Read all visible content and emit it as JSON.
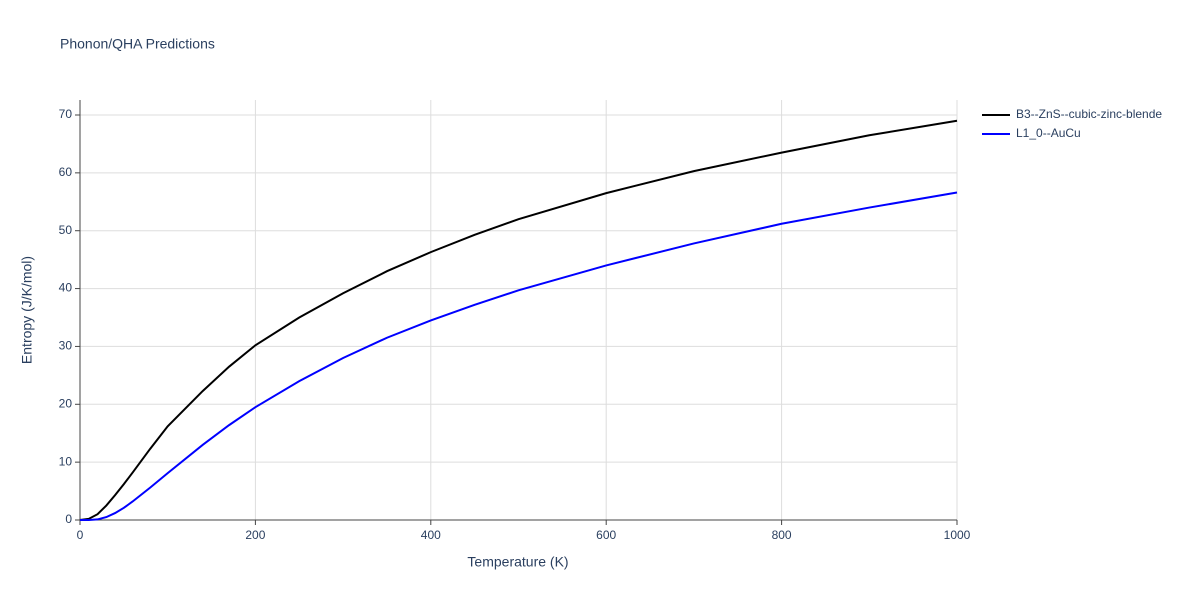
{
  "chart_data": {
    "type": "line",
    "title": "Phonon/QHA Predictions",
    "x_label": "Temperature (K)",
    "y_label": "Entropy (J/K/mol)",
    "x": [
      0,
      10,
      20,
      30,
      40,
      50,
      60,
      80,
      100,
      140,
      170,
      200,
      250,
      300,
      350,
      400,
      450,
      500,
      600,
      700,
      800,
      900,
      1000
    ],
    "series": [
      {
        "name": "B3--ZnS--cubic-zinc-blende",
        "color": "#000000",
        "values": [
          0,
          0.2,
          1,
          2.5,
          4.3,
          6.2,
          8.2,
          12.3,
          16.2,
          22.3,
          26.5,
          30.2,
          35,
          39.2,
          43,
          46.3,
          49.3,
          52,
          56.5,
          60.3,
          63.5,
          66.5,
          69
        ]
      },
      {
        "name": "L1_0--AuCu",
        "color": "#0000ff",
        "values": [
          0,
          0,
          0.1,
          0.5,
          1.2,
          2.1,
          3.2,
          5.6,
          8.1,
          13,
          16.4,
          19.5,
          24,
          28,
          31.5,
          34.5,
          37.2,
          39.7,
          44,
          47.8,
          51.2,
          54,
          56.6
        ]
      }
    ],
    "xlim": [
      0,
      1000
    ],
    "xticks": [
      0,
      200,
      400,
      600,
      800,
      1000
    ],
    "ylim": [
      0,
      70
    ],
    "yticks": [
      0,
      10,
      20,
      30,
      40,
      50,
      60,
      70
    ],
    "grid": true,
    "legend": "right"
  }
}
